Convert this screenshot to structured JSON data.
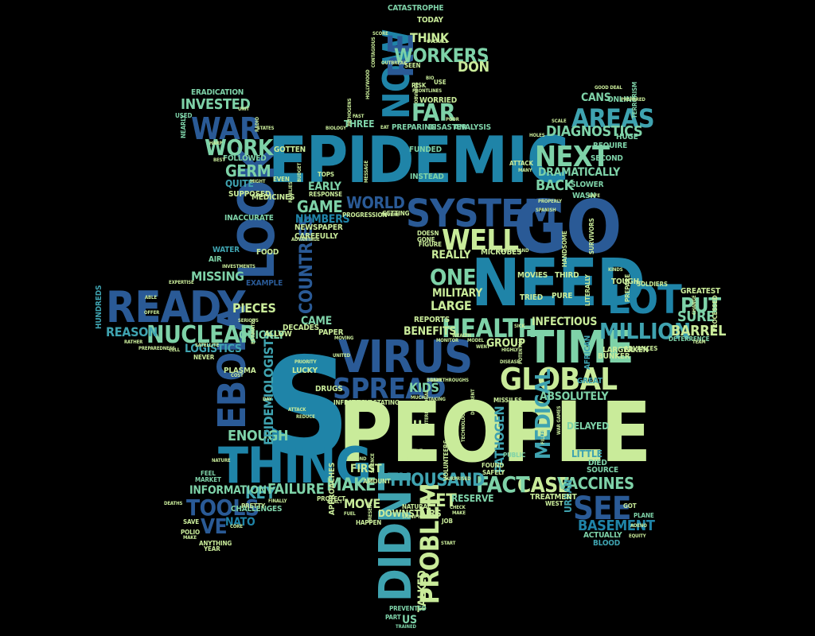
{
  "palette": {
    "dark": "#2a5a96",
    "mid": "#1f84a8",
    "teal": "#3fa3b0",
    "mint": "#7ed2a8",
    "lime": "#c9eb9a",
    "background": "#000000"
  },
  "words": [
    {
      "t": "S",
      "c": "mid"
    },
    {
      "t": "PEOPLE",
      "c": "lime"
    },
    {
      "t": "EPIDEMIC",
      "c": "mid"
    },
    {
      "t": "NEED",
      "c": "mid"
    },
    {
      "t": "GO",
      "c": "dark"
    },
    {
      "t": "LOOK",
      "c": "dark"
    },
    {
      "t": "READY",
      "c": "dark"
    },
    {
      "t": "TIME",
      "c": "mint"
    },
    {
      "t": "VIRUS",
      "c": "dark"
    },
    {
      "t": "THING",
      "c": "mid"
    },
    {
      "t": "DIDNT",
      "c": "teal"
    },
    {
      "t": "SYSTEM",
      "c": "dark"
    },
    {
      "t": "EBOLA",
      "c": "dark"
    },
    {
      "t": "LOT",
      "c": "mid"
    },
    {
      "t": "NOW",
      "c": "mid"
    },
    {
      "t": "RE",
      "c": "dark"
    },
    {
      "t": "GLOBAL",
      "c": "lime"
    },
    {
      "t": "HEALTH",
      "c": "mint"
    },
    {
      "t": "SPREAD",
      "c": "dark"
    },
    {
      "t": "WELL",
      "c": "lime"
    },
    {
      "t": "SEE",
      "c": "dark"
    },
    {
      "t": "WAR",
      "c": "dark"
    },
    {
      "t": "NEXT",
      "c": "mint"
    },
    {
      "t": "AREAS",
      "c": "teal"
    },
    {
      "t": "WORK",
      "c": "mint"
    },
    {
      "t": "WORKERS",
      "c": "mint"
    },
    {
      "t": "FAR",
      "c": "mint"
    },
    {
      "t": "ONE",
      "c": "mint"
    },
    {
      "t": "PROBLEM",
      "c": "lime"
    },
    {
      "t": "NUCLEAR",
      "c": "mint"
    },
    {
      "t": "MEDICAL",
      "c": "teal"
    },
    {
      "t": "CASE",
      "c": "lime"
    },
    {
      "t": "FACT",
      "c": "mint"
    },
    {
      "t": "VACCINES",
      "c": "mint"
    },
    {
      "t": "THOUSAND",
      "c": "teal"
    },
    {
      "t": "MILLION",
      "c": "teal"
    },
    {
      "t": "TOOLS",
      "c": "dark"
    },
    {
      "t": "VE",
      "c": "dark"
    },
    {
      "t": "PUT",
      "c": "mint"
    },
    {
      "t": "COUNTRIES",
      "c": "dark"
    },
    {
      "t": "GERM",
      "c": "mint"
    },
    {
      "t": "BACK",
      "c": "mint"
    },
    {
      "t": "GAME",
      "c": "mint"
    },
    {
      "t": "WORLD",
      "c": "dark"
    },
    {
      "t": "DIAGNOSTICS",
      "c": "mint"
    },
    {
      "t": "MAKE",
      "c": "mint"
    },
    {
      "t": "LET",
      "c": "lime"
    },
    {
      "t": "KEY",
      "c": "teal"
    },
    {
      "t": "FAILURE",
      "c": "mint"
    },
    {
      "t": "ENOUGH",
      "c": "mint"
    },
    {
      "t": "BASEMENT",
      "c": "mid"
    },
    {
      "t": "REASON",
      "c": "teal"
    },
    {
      "t": "PIECES",
      "c": "lime"
    },
    {
      "t": "INVESTED",
      "c": "mint"
    },
    {
      "t": "LARGE",
      "c": "lime"
    },
    {
      "t": "INFECTIOUS",
      "c": "lime"
    },
    {
      "t": "MISSING",
      "c": "mint"
    },
    {
      "t": "EPIDEMIOLOGISTS",
      "c": "teal"
    },
    {
      "t": "KIDS",
      "c": "mint"
    },
    {
      "t": "BARREL",
      "c": "lime"
    },
    {
      "t": "SURE",
      "c": "mint"
    },
    {
      "t": "ABSOLUTELY",
      "c": "mint"
    },
    {
      "t": "REALLY",
      "c": "lime"
    },
    {
      "t": "MILITARY",
      "c": "lime"
    },
    {
      "t": "INFORMATION",
      "c": "mint"
    },
    {
      "t": "PATHOGEN",
      "c": "teal"
    },
    {
      "t": "GROUP",
      "c": "lime"
    },
    {
      "t": "DON",
      "c": "lime"
    },
    {
      "t": "THINK",
      "c": "lime"
    },
    {
      "t": "BENEFITS",
      "c": "lime"
    },
    {
      "t": "REPORTS",
      "c": "lime"
    },
    {
      "t": "QUICKLY",
      "c": "mint"
    },
    {
      "t": "LOGISTICS",
      "c": "teal"
    },
    {
      "t": "TALKED",
      "c": "lime"
    },
    {
      "t": "DOWNSTAIRS",
      "c": "lime"
    },
    {
      "t": "MOVE",
      "c": "lime"
    },
    {
      "t": "FLU",
      "c": "lime"
    },
    {
      "t": "FIRST",
      "c": "lime"
    },
    {
      "t": "THREE",
      "c": "mint"
    },
    {
      "t": "CAME",
      "c": "mint"
    },
    {
      "t": "DRAMATICALLY",
      "c": "mint"
    },
    {
      "t": "CANS",
      "c": "mint"
    },
    {
      "t": "ONLINE",
      "c": "mint"
    },
    {
      "t": "EARLY",
      "c": "mint"
    },
    {
      "t": "NUMBERS",
      "c": "mid"
    },
    {
      "t": "NATO",
      "c": "mid"
    },
    {
      "t": "TRIED",
      "c": "lime"
    },
    {
      "t": "MOVIES",
      "c": "lime"
    },
    {
      "t": "PURE",
      "c": "lime"
    },
    {
      "t": "THIRD",
      "c": "lime"
    },
    {
      "t": "MICROBES",
      "c": "lime"
    },
    {
      "t": "RESERVE",
      "c": "mint"
    },
    {
      "t": "DELAYED",
      "c": "mint"
    },
    {
      "t": "LITTLE",
      "c": "teal"
    },
    {
      "t": "URBAN",
      "c": "teal"
    },
    {
      "t": "PUBLIC",
      "c": "mint"
    },
    {
      "t": "DIED",
      "c": "mint"
    },
    {
      "t": "SOURCE",
      "c": "mint"
    },
    {
      "t": "ACTUALLY",
      "c": "mint"
    },
    {
      "t": "BLOOD",
      "c": "teal"
    },
    {
      "t": "PLANE",
      "c": "mint"
    },
    {
      "t": "US",
      "c": "mint"
    },
    {
      "t": "PART",
      "c": "mint"
    },
    {
      "t": "PREVENTED",
      "c": "mint"
    },
    {
      "t": "TRAINED",
      "c": "mint"
    },
    {
      "t": "CATASTROPHE",
      "c": "mint"
    },
    {
      "t": "SCORE",
      "c": "lime"
    },
    {
      "t": "TODAY",
      "c": "lime"
    },
    {
      "t": "WORRIED",
      "c": "lime"
    },
    {
      "t": "PREPARING",
      "c": "mint"
    },
    {
      "t": "DISASTER",
      "c": "mint"
    },
    {
      "t": "ANALYSIS",
      "c": "mint"
    },
    {
      "t": "FUNDED",
      "c": "mint"
    },
    {
      "t": "INSTEAD",
      "c": "mint"
    },
    {
      "t": "FOLLOWED",
      "c": "mint"
    },
    {
      "t": "GOTTEN",
      "c": "lime"
    },
    {
      "t": "QUITE",
      "c": "teal"
    },
    {
      "t": "SUPPOSED",
      "c": "lime"
    },
    {
      "t": "INACCURATE",
      "c": "mint"
    },
    {
      "t": "MEDICINES",
      "c": "lime"
    },
    {
      "t": "NEWSPAPER",
      "c": "lime"
    },
    {
      "t": "CAREFULLY",
      "c": "lime"
    },
    {
      "t": "FOOD",
      "c": "lime"
    },
    {
      "t": "WATER",
      "c": "teal"
    },
    {
      "t": "AIR",
      "c": "mint"
    },
    {
      "t": "HUNDREDS",
      "c": "teal"
    },
    {
      "t": "EXAMPLE",
      "c": "dark"
    },
    {
      "t": "DECADES",
      "c": "lime"
    },
    {
      "t": "PAPER",
      "c": "lime"
    },
    {
      "t": "ALLOW",
      "c": "lime"
    },
    {
      "t": "NEVER",
      "c": "lime"
    },
    {
      "t": "PLASMA",
      "c": "lime"
    },
    {
      "t": "LUCKY",
      "c": "lime"
    },
    {
      "t": "DRUGS",
      "c": "lime"
    },
    {
      "t": "INFECTIONS",
      "c": "lime"
    },
    {
      "t": "DEVASTATING",
      "c": "lime"
    },
    {
      "t": "MISSILES",
      "c": "lime"
    },
    {
      "t": "GREAT",
      "c": "teal"
    },
    {
      "t": "AFRICAN",
      "c": "teal"
    },
    {
      "t": "BUNKER",
      "c": "lime"
    },
    {
      "t": "TAKEN",
      "c": "lime"
    },
    {
      "t": "LARGER",
      "c": "lime"
    },
    {
      "t": "ADVANCES",
      "c": "lime"
    },
    {
      "t": "TOUGH",
      "c": "lime"
    },
    {
      "t": "SOLDIERS",
      "c": "lime"
    },
    {
      "t": "GREATEST",
      "c": "lime"
    },
    {
      "t": "DETERRENCE",
      "c": "mint"
    },
    {
      "t": "PROCESSED",
      "c": "lime"
    },
    {
      "t": "LITERALLY",
      "c": "lime"
    },
    {
      "t": "PREPARE",
      "c": "lime"
    },
    {
      "t": "SURVIVORS",
      "c": "lime"
    },
    {
      "t": "HANDSOME",
      "c": "lime"
    },
    {
      "t": "SLOWER",
      "c": "mint"
    },
    {
      "t": "WASN",
      "c": "mint"
    },
    {
      "t": "REQUIRE",
      "c": "mint"
    },
    {
      "t": "HUGE",
      "c": "mint"
    },
    {
      "t": "SECOND",
      "c": "mint"
    },
    {
      "t": "TERRORISM",
      "c": "mint"
    },
    {
      "t": "ERADICATION",
      "c": "mint"
    },
    {
      "t": "USED",
      "c": "mint"
    },
    {
      "t": "NEARLY",
      "c": "mint"
    },
    {
      "t": "CHALLENGES",
      "c": "mint"
    },
    {
      "t": "MARKET",
      "c": "mint"
    },
    {
      "t": "FEEL",
      "c": "mint"
    },
    {
      "t": "SAVE",
      "c": "lime"
    },
    {
      "t": "POLIO",
      "c": "lime"
    },
    {
      "t": "ANYTHING",
      "c": "lime"
    },
    {
      "t": "YEAR",
      "c": "lime"
    },
    {
      "t": "PRETTY",
      "c": "lime"
    },
    {
      "t": "PROTECT",
      "c": "lime"
    },
    {
      "t": "AMOUNT",
      "c": "lime"
    },
    {
      "t": "APPROACHES",
      "c": "lime"
    },
    {
      "t": "HAPPEN",
      "c": "lime"
    },
    {
      "t": "NATURAL",
      "c": "lime"
    },
    {
      "t": "JOB",
      "c": "lime"
    },
    {
      "t": "START",
      "c": "lime"
    },
    {
      "t": "VOLUNTEERS",
      "c": "lime"
    },
    {
      "t": "TREATMENT",
      "c": "lime"
    },
    {
      "t": "WEST",
      "c": "lime"
    },
    {
      "t": "FOUND",
      "c": "lime"
    },
    {
      "t": "SAFELY",
      "c": "lime"
    },
    {
      "t": "GOT",
      "c": "lime"
    },
    {
      "t": "OUTBREAK",
      "c": "lime"
    },
    {
      "t": "SEEN",
      "c": "lime"
    },
    {
      "t": "USE",
      "c": "lime"
    },
    {
      "t": "RISK",
      "c": "lime"
    },
    {
      "t": "FAST",
      "c": "lime"
    },
    {
      "t": "EAT",
      "c": "lime"
    },
    {
      "t": "EVEN",
      "c": "lime"
    },
    {
      "t": "TOPS",
      "c": "lime"
    },
    {
      "t": "GETTING",
      "c": "lime"
    },
    {
      "t": "PROGRESSION",
      "c": "lime"
    },
    {
      "t": "RESPONSE",
      "c": "lime"
    },
    {
      "t": "DOESN",
      "c": "lime"
    },
    {
      "t": "GONE",
      "c": "lime"
    },
    {
      "t": "FIGURE",
      "c": "lime"
    },
    {
      "t": "ATTACK",
      "c": "lime"
    },
    {
      "t": "MANY",
      "c": "lime"
    },
    {
      "t": "SCALE",
      "c": "lime"
    },
    {
      "t": "HOLES",
      "c": "lime"
    },
    {
      "t": "PROPERLY",
      "c": "lime"
    },
    {
      "t": "SPANISH",
      "c": "lime"
    },
    {
      "t": "EXPERTISE",
      "c": "lime"
    },
    {
      "t": "ABLE",
      "c": "lime"
    },
    {
      "t": "OFFER",
      "c": "lime"
    },
    {
      "t": "RATHER",
      "c": "lime"
    },
    {
      "t": "CELL",
      "c": "lime"
    },
    {
      "t": "PREPAREDNESS",
      "c": "lime"
    },
    {
      "t": "SATELLITE",
      "c": "lime"
    },
    {
      "t": "ESTIMATES",
      "c": "lime"
    },
    {
      "t": "MOVING",
      "c": "lime"
    },
    {
      "t": "MONITOR",
      "c": "lime"
    },
    {
      "t": "MODEL",
      "c": "lime"
    },
    {
      "t": "SICK",
      "c": "lime"
    },
    {
      "t": "HIGHLY",
      "c": "lime"
    },
    {
      "t": "DISEASE",
      "c": "lime"
    },
    {
      "t": "POTENTIAL",
      "c": "lime"
    },
    {
      "t": "SERIOUS",
      "c": "lime"
    },
    {
      "t": "PRIORITY",
      "c": "lime"
    },
    {
      "t": "DAY",
      "c": "lime"
    },
    {
      "t": "ATTACK",
      "c": "lime"
    },
    {
      "t": "REDUCE",
      "c": "lime"
    },
    {
      "t": "MUCH",
      "c": "lime"
    },
    {
      "t": "LIKELY",
      "c": "lime"
    },
    {
      "t": "TAKING",
      "c": "lime"
    },
    {
      "t": "POSITIVE",
      "c": "lime"
    },
    {
      "t": "STOP",
      "c": "lime"
    },
    {
      "t": "SCIENCE",
      "c": "lime"
    },
    {
      "t": "SIGNIFICANT",
      "c": "lime"
    },
    {
      "t": "CHECK",
      "c": "lime"
    },
    {
      "t": "MAKE",
      "c": "lime"
    },
    {
      "t": "FILLED",
      "c": "lime"
    },
    {
      "t": "FRONTLINES",
      "c": "lime"
    },
    {
      "t": "BIO",
      "c": "lime"
    },
    {
      "t": "POOR",
      "c": "lime"
    },
    {
      "t": "BIOLOGY",
      "c": "lime"
    },
    {
      "t": "STATES",
      "c": "lime"
    },
    {
      "t": "HARP",
      "c": "lime"
    },
    {
      "t": "BEST",
      "c": "lime"
    },
    {
      "t": "MIGHT",
      "c": "lime"
    },
    {
      "t": "UNIT",
      "c": "lime"
    },
    {
      "t": "RADIO",
      "c": "lime"
    },
    {
      "t": "NATURE",
      "c": "lime"
    },
    {
      "t": "FINALLY",
      "c": "lime"
    },
    {
      "t": "FUEL",
      "c": "lime"
    },
    {
      "t": "EXACT",
      "c": "lime"
    },
    {
      "t": "PRESENT",
      "c": "lime"
    },
    {
      "t": "WENT",
      "c": "lime"
    },
    {
      "t": "MAKE",
      "c": "lime"
    },
    {
      "t": "DEATHS",
      "c": "lime"
    },
    {
      "t": "CORE",
      "c": "lime"
    },
    {
      "t": "OVERALL",
      "c": "lime"
    },
    {
      "t": "PREPARED",
      "c": "lime"
    },
    {
      "t": "GOOD DEAL",
      "c": "lime"
    },
    {
      "t": "FIT",
      "c": "lime"
    },
    {
      "t": "KINDS",
      "c": "lime"
    },
    {
      "t": "ADENO",
      "c": "lime"
    },
    {
      "t": "SAFE",
      "c": "lime"
    },
    {
      "t": "SEVERE",
      "c": "lime"
    },
    {
      "t": "MESSAGE",
      "c": "lime"
    },
    {
      "t": "BEYOND",
      "c": "lime"
    },
    {
      "t": "HOLLYWOOD",
      "c": "lime"
    },
    {
      "t": "OBVIOUS",
      "c": "lime"
    },
    {
      "t": "CONTAGIOUS",
      "c": "lime"
    },
    {
      "t": "UNDERSTAND",
      "c": "lime"
    },
    {
      "t": "TEAM",
      "c": "lime"
    },
    {
      "t": "EQUITY",
      "c": "lime"
    },
    {
      "t": "COST",
      "c": "lime"
    },
    {
      "t": "CHANGE",
      "c": "lime"
    },
    {
      "t": "FAMILIES",
      "c": "lime"
    },
    {
      "t": "BUDGET",
      "c": "lime"
    },
    {
      "t": "ADVANTAGE",
      "c": "lime"
    },
    {
      "t": "INVESTMENTS",
      "c": "lime"
    },
    {
      "t": "WEALTH",
      "c": "lime"
    },
    {
      "t": "UNITED",
      "c": "lime"
    },
    {
      "t": "GAVE",
      "c": "lime"
    },
    {
      "t": "SURPRISED",
      "c": "lime"
    },
    {
      "t": "EXERCISES",
      "c": "lime"
    },
    {
      "t": "WAR GAMES",
      "c": "lime"
    },
    {
      "t": "DIFFERENT",
      "c": "lime"
    },
    {
      "t": "TECHNOLOGY",
      "c": "lime"
    },
    {
      "t": "PATHOGENS",
      "c": "lime"
    },
    {
      "t": "BREAKTHROUGHS",
      "c": "lime"
    },
    {
      "t": "INTERNATIONAL",
      "c": "lime"
    },
    {
      "t": "SPLATTERED",
      "c": "lime"
    },
    {
      "t": "DOCTORS",
      "c": "lime"
    },
    {
      "t": "THROUGHOUT",
      "c": "lime"
    },
    {
      "t": "HUMANITARIAN",
      "c": "lime"
    }
  ]
}
